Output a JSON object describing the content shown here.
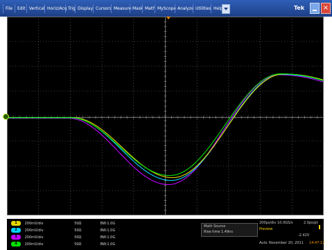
{
  "menu": [
    "File",
    "Edit",
    "Vertical",
    "Horiz/Acq",
    "Trig",
    "Display",
    "Cursors",
    "Measure",
    "Mask",
    "Math",
    "MyScope",
    "Analyze",
    "Utilities",
    "Help"
  ],
  "logo": "Tek",
  "window_controls": {
    "minimize": "minimize-icon",
    "close": "×"
  },
  "channels": [
    {
      "num": "1",
      "color": "#e6d800",
      "scale": "200mV/div",
      "impedance": "50Ω",
      "bandwidth": "BW:1.0G"
    },
    {
      "num": "2",
      "color": "#00d2ff",
      "scale": "200mV/div",
      "impedance": "50Ω",
      "bandwidth": "BW:1.0G"
    },
    {
      "num": "3",
      "color": "#c000ff",
      "scale": "200mV/div",
      "impedance": "50Ω",
      "bandwidth": "BW:1.0G"
    },
    {
      "num": "4",
      "color": "#00e000",
      "scale": "200mV/div",
      "impedance": "50Ω",
      "bandwidth": "BW:1.0G"
    }
  ],
  "measure": {
    "label": "Math",
    "source": "Source",
    "value": "Rise time  1.49ns"
  },
  "acquisition": {
    "timebase": "200ps/div  10.0GS/s",
    "record": "2.0ps/pt",
    "mode": "Preview",
    "trigger_level": "-2.42V",
    "run_mode": "Auto",
    "date": "November 20, 2011",
    "time": "14:47:17"
  },
  "colors": {
    "grid": "#7a7a7a",
    "yellow": "#e6d800",
    "cyan": "#00d2ff",
    "magenta": "#c000ff",
    "green": "#00e000"
  }
}
